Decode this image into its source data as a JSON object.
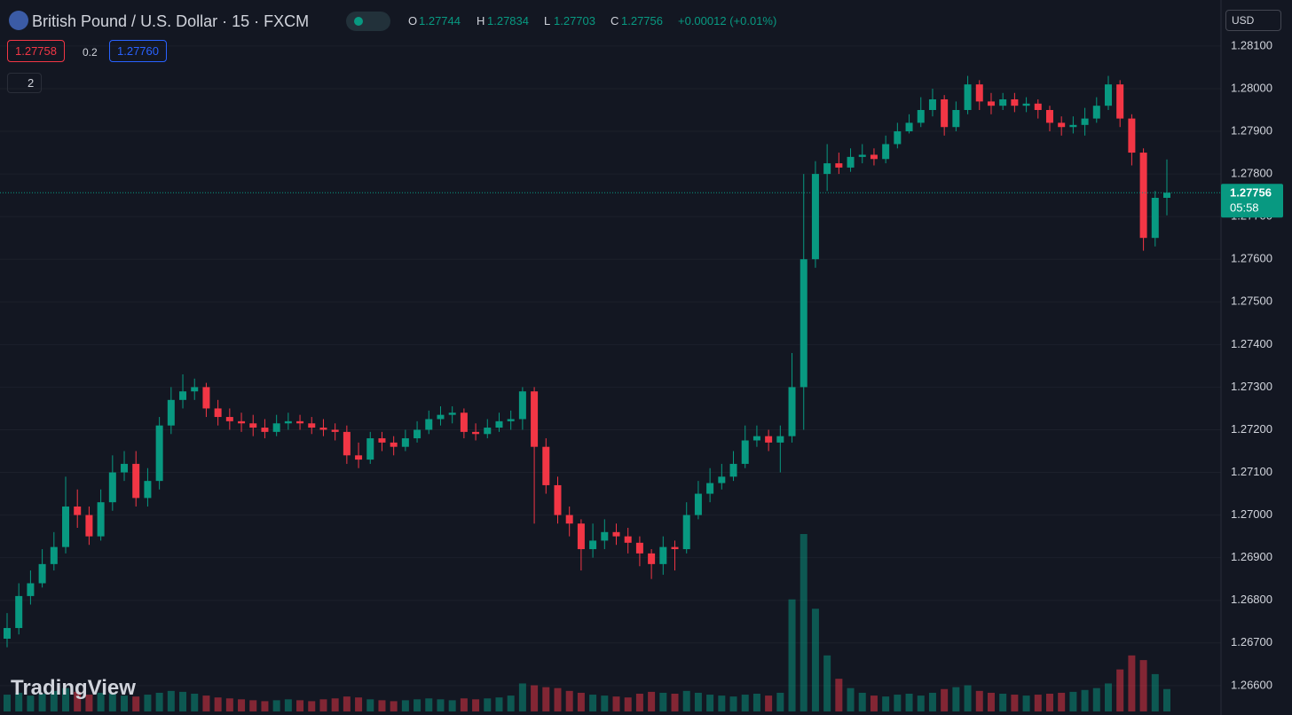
{
  "header": {
    "symbol_title": "British Pound / U.S. Dollar · 15 · FXCM",
    "o_label": "O",
    "o": "1.27744",
    "h_label": "H",
    "h": "1.27834",
    "l_label": "L",
    "l": "1.27703",
    "c_label": "C",
    "c": "1.27756",
    "change": "+0.00012 (+0.01%)",
    "bid": "1.27758",
    "spread": "0.2",
    "ask": "1.27760",
    "indicators": "2",
    "currency": "USD",
    "countdown": "05:58",
    "logo": "TradingView"
  },
  "chart_data": {
    "type": "candlestick",
    "up_color": "#089981",
    "down_color": "#f23645",
    "grid": true,
    "ylim": [
      1.26531,
      1.28208
    ],
    "yticks": [
      {
        "value": 1.266,
        "label": "1.26600"
      },
      {
        "value": 1.267,
        "label": "1.26700"
      },
      {
        "value": 1.268,
        "label": "1.26800"
      },
      {
        "value": 1.269,
        "label": "1.26900"
      },
      {
        "value": 1.27,
        "label": "1.27000"
      },
      {
        "value": 1.271,
        "label": "1.27100"
      },
      {
        "value": 1.272,
        "label": "1.27200"
      },
      {
        "value": 1.273,
        "label": "1.27300"
      },
      {
        "value": 1.274,
        "label": "1.27400"
      },
      {
        "value": 1.275,
        "label": "1.27500"
      },
      {
        "value": 1.276,
        "label": "1.27600"
      },
      {
        "value": 1.277,
        "label": "1.27700"
      },
      {
        "value": 1.278,
        "label": "1.27800"
      },
      {
        "value": 1.279,
        "label": "1.27900"
      },
      {
        "value": 1.28,
        "label": "1.28000"
      },
      {
        "value": 1.281,
        "label": "1.28100"
      }
    ],
    "open": [
      1.2671,
      1.26735,
      1.2681,
      1.2684,
      1.26885,
      1.26925,
      1.2702,
      1.27,
      1.2695,
      1.2703,
      1.271,
      1.2712,
      1.2704,
      1.2708,
      1.2721,
      1.2727,
      1.2729,
      1.273,
      1.2725,
      1.2723,
      1.2722,
      1.27215,
      1.27205,
      1.27195,
      1.27215,
      1.2722,
      1.27215,
      1.27205,
      1.272,
      1.27195,
      1.2714,
      1.2713,
      1.2718,
      1.2717,
      1.2716,
      1.2718,
      1.272,
      1.27225,
      1.27235,
      1.2724,
      1.27195,
      1.2719,
      1.27205,
      1.2722,
      1.27225,
      1.2729,
      1.2716,
      1.2707,
      1.27,
      1.2698,
      1.2692,
      1.2694,
      1.2696,
      1.2695,
      1.26935,
      1.2691,
      1.26885,
      1.26925,
      1.2692,
      1.27,
      1.2705,
      1.27075,
      1.2709,
      1.2712,
      1.27175,
      1.27185,
      1.2717,
      1.27185,
      1.273,
      1.276,
      1.278,
      1.27825,
      1.27815,
      1.2784,
      1.27845,
      1.27835,
      1.2787,
      1.279,
      1.2792,
      1.2795,
      1.27975,
      1.2791,
      1.2795,
      1.2801,
      1.2797,
      1.2796,
      1.27975,
      1.2796,
      1.27965,
      1.2795,
      1.2792,
      1.2791,
      1.27915,
      1.2793,
      1.2796,
      1.2801,
      1.2793,
      1.2785,
      1.2765,
      1.27744
    ],
    "high": [
      1.2677,
      1.2684,
      1.2687,
      1.2692,
      1.2696,
      1.2709,
      1.2706,
      1.2702,
      1.2706,
      1.2714,
      1.2715,
      1.2715,
      1.2711,
      1.2723,
      1.273,
      1.2733,
      1.2732,
      1.2731,
      1.2727,
      1.2725,
      1.2724,
      1.27235,
      1.27225,
      1.27235,
      1.2724,
      1.27235,
      1.2723,
      1.27225,
      1.27215,
      1.2721,
      1.2717,
      1.27195,
      1.27195,
      1.27185,
      1.272,
      1.2722,
      1.27245,
      1.27255,
      1.27255,
      1.2725,
      1.27215,
      1.27225,
      1.2724,
      1.27245,
      1.273,
      1.273,
      1.2718,
      1.2709,
      1.2702,
      1.2699,
      1.2698,
      1.2699,
      1.2698,
      1.2697,
      1.2695,
      1.2692,
      1.2695,
      1.2694,
      1.2703,
      1.2708,
      1.2711,
      1.2712,
      1.2715,
      1.2721,
      1.2721,
      1.272,
      1.2721,
      1.2738,
      1.278,
      1.2783,
      1.2787,
      1.2785,
      1.2786,
      1.2787,
      1.2786,
      1.2789,
      1.2792,
      1.2794,
      1.2798,
      1.28,
      1.27985,
      1.2797,
      1.2803,
      1.2802,
      1.2799,
      1.2799,
      1.2799,
      1.2798,
      1.27975,
      1.2796,
      1.27935,
      1.27935,
      1.27955,
      1.2798,
      1.2803,
      1.2802,
      1.2794,
      1.2786,
      1.2776,
      1.27834
    ],
    "low": [
      1.2669,
      1.2672,
      1.2679,
      1.2683,
      1.2687,
      1.2691,
      1.2697,
      1.2693,
      1.2694,
      1.2701,
      1.2708,
      1.2702,
      1.2702,
      1.2706,
      1.2719,
      1.2725,
      1.2727,
      1.2723,
      1.2721,
      1.272,
      1.27195,
      1.27185,
      1.2718,
      1.27185,
      1.272,
      1.272,
      1.2719,
      1.27185,
      1.27175,
      1.2712,
      1.2711,
      1.2712,
      1.2715,
      1.2714,
      1.2715,
      1.2717,
      1.2719,
      1.2721,
      1.27215,
      1.2718,
      1.27175,
      1.2718,
      1.27195,
      1.272,
      1.272,
      1.2698,
      1.2705,
      1.2698,
      1.2695,
      1.2687,
      1.269,
      1.2692,
      1.2693,
      1.2691,
      1.2688,
      1.2685,
      1.2686,
      1.2687,
      1.2691,
      1.2699,
      1.2703,
      1.2706,
      1.2708,
      1.2711,
      1.2716,
      1.2715,
      1.271,
      1.2717,
      1.272,
      1.2758,
      1.2776,
      1.278,
      1.27805,
      1.27825,
      1.2782,
      1.27825,
      1.2786,
      1.27895,
      1.2791,
      1.27935,
      1.2789,
      1.279,
      1.2794,
      1.2795,
      1.2794,
      1.2795,
      1.27945,
      1.27945,
      1.2793,
      1.279,
      1.2789,
      1.27895,
      1.2789,
      1.2792,
      1.2795,
      1.2791,
      1.2782,
      1.2762,
      1.2763,
      1.27703
    ],
    "close": [
      1.26735,
      1.2681,
      1.2684,
      1.26885,
      1.26925,
      1.2702,
      1.27,
      1.2695,
      1.2703,
      1.271,
      1.2712,
      1.2704,
      1.2708,
      1.2721,
      1.2727,
      1.2729,
      1.273,
      1.2725,
      1.2723,
      1.2722,
      1.27215,
      1.27205,
      1.27195,
      1.27215,
      1.2722,
      1.27215,
      1.27205,
      1.272,
      1.27195,
      1.2714,
      1.2713,
      1.2718,
      1.2717,
      1.2716,
      1.2718,
      1.272,
      1.27225,
      1.27235,
      1.2724,
      1.27195,
      1.2719,
      1.27205,
      1.2722,
      1.27225,
      1.2729,
      1.2716,
      1.2707,
      1.27,
      1.2698,
      1.2692,
      1.2694,
      1.2696,
      1.2695,
      1.26935,
      1.2691,
      1.26885,
      1.26925,
      1.2692,
      1.27,
      1.2705,
      1.27075,
      1.2709,
      1.2712,
      1.27175,
      1.27185,
      1.2717,
      1.27185,
      1.273,
      1.276,
      1.278,
      1.27825,
      1.27815,
      1.2784,
      1.27845,
      1.27835,
      1.2787,
      1.279,
      1.2792,
      1.2795,
      1.27975,
      1.2791,
      1.2795,
      1.2801,
      1.2797,
      1.2796,
      1.27975,
      1.2796,
      1.27965,
      1.2795,
      1.2792,
      1.2791,
      1.27915,
      1.2793,
      1.2796,
      1.2801,
      1.2793,
      1.2785,
      1.2765,
      1.27744,
      1.27756
    ],
    "volume": [
      18,
      20,
      17,
      19,
      22,
      25,
      21,
      18,
      20,
      19,
      17,
      16,
      18,
      20,
      22,
      21,
      19,
      17,
      15,
      14,
      13,
      12,
      11,
      12,
      13,
      12,
      11,
      13,
      14,
      16,
      15,
      13,
      12,
      11,
      12,
      13,
      14,
      13,
      12,
      14,
      13,
      14,
      15,
      17,
      30,
      28,
      26,
      25,
      22,
      20,
      18,
      17,
      16,
      15,
      19,
      21,
      20,
      19,
      22,
      20,
      18,
      17,
      16,
      18,
      19,
      17,
      20,
      120,
      190,
      110,
      60,
      35,
      25,
      20,
      17,
      16,
      18,
      19,
      17,
      20,
      24,
      26,
      28,
      22,
      20,
      19,
      18,
      17,
      18,
      19,
      20,
      21,
      23,
      25,
      30,
      45,
      60,
      55,
      40,
      24
    ]
  }
}
